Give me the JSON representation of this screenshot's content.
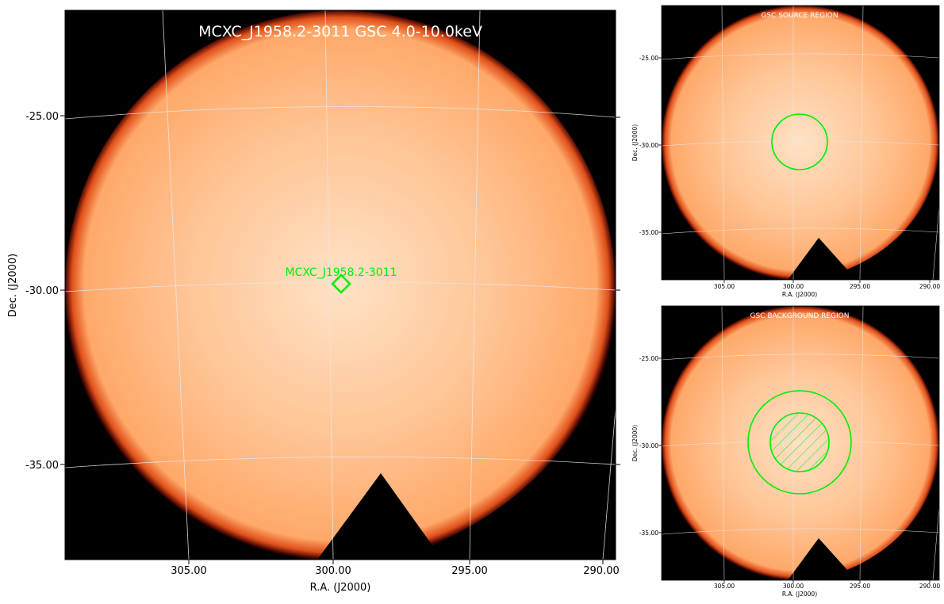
{
  "main": {
    "title": "MCXC_J1958.2-3011 GSC 4.0-10.0keV",
    "source_label": "MCXC_J1958.2-3011",
    "xlabel": "R.A. (J2000)",
    "ylabel": "Dec. (J2000)",
    "xticks": [
      "305.00",
      "300.00",
      "295.00",
      "290.00"
    ],
    "yticks": [
      "-25.00",
      "-30.00",
      "-35.00"
    ]
  },
  "source_panel": {
    "title": "GSC SOURCE REGION",
    "xlabel": "R.A. (J2000)",
    "ylabel": "Dec. (J2000)",
    "xticks": [
      "305.00",
      "300.00",
      "295.00",
      "290.00"
    ],
    "yticks": [
      "-25.00",
      "-30.00",
      "-35.00"
    ]
  },
  "background_panel": {
    "title": "GSC BACKGROUND REGION",
    "xlabel": "R.A. (J2000)",
    "ylabel": "Dec. (J2000)",
    "xticks": [
      "305.00",
      "300.00",
      "295.00",
      "290.00"
    ],
    "yticks": [
      "-25.00",
      "-30.00",
      "-35.00"
    ]
  },
  "colors": {
    "image_fill": "#ffb076",
    "image_center": "#ffe2c6",
    "frame_bg": "#000000",
    "region_green": "#00ee00",
    "grid": "#e8e8e8"
  }
}
